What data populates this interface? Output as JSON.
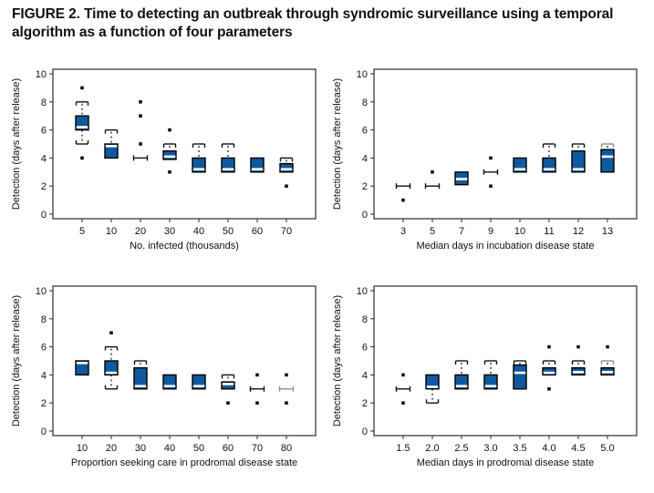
{
  "title": "FIGURE 2. Time to detecting an outbreak through syndromic surveillance using a temporal algorithm as a function of four parameters",
  "colors": {
    "box_fill": "#0f5a9e",
    "box_stroke": "#000000",
    "median": "#ffffff",
    "outlier": "#111111",
    "gray": "#8f8f8f",
    "frame": "#2b2b2b"
  },
  "chart_data": [
    {
      "type": "boxplot",
      "position": "top-left",
      "xlabel": "No. infected (thousands)",
      "ylabel": "Detection (days after release)",
      "ylim": [
        0,
        10
      ],
      "yticks": [
        0,
        2,
        4,
        6,
        8,
        10
      ],
      "grid": false,
      "categories": [
        "5",
        "10",
        "20",
        "30",
        "40",
        "50",
        "60",
        "70"
      ],
      "items": [
        {
          "x": "5",
          "q1": 6,
          "q3": 7,
          "median": 6.2,
          "whisker_high": 8,
          "whisker_low": 5,
          "outliers": [
            9,
            4
          ]
        },
        {
          "x": "10",
          "q1": 4,
          "q3": 5,
          "median": 4.85,
          "whisker_high": 6,
          "outliers": []
        },
        {
          "x": "20",
          "flat": 4,
          "outliers": [
            8,
            7,
            5
          ]
        },
        {
          "x": "30",
          "q1": 3.9,
          "q3": 4.5,
          "median": 4.1,
          "whisker_high": 5,
          "outliers": [
            6,
            3
          ]
        },
        {
          "x": "40",
          "q1": 3,
          "q3": 4,
          "median": 3.2,
          "whisker_high": 5,
          "outliers": []
        },
        {
          "x": "50",
          "q1": 3,
          "q3": 4,
          "median": 3.2,
          "whisker_high": 5,
          "outliers": []
        },
        {
          "x": "60",
          "q1": 3,
          "q3": 4,
          "median": 3.2,
          "outliers": []
        },
        {
          "x": "70",
          "q1": 3,
          "q3": 3.6,
          "median": 3.2,
          "whisker_high": 4,
          "outliers": [
            2
          ]
        }
      ]
    },
    {
      "type": "boxplot",
      "position": "top-right",
      "xlabel": "Median days in incubation disease state",
      "ylabel": "Detection (days after release)",
      "ylim": [
        0,
        10
      ],
      "yticks": [
        0,
        2,
        4,
        6,
        8,
        10
      ],
      "grid": false,
      "categories": [
        "3",
        "5",
        "7",
        "9",
        "10",
        "11",
        "12",
        "13"
      ],
      "items": [
        {
          "x": "3",
          "flat": 2,
          "outliers": [
            1
          ]
        },
        {
          "x": "5",
          "flat": 2,
          "outliers": [
            3
          ]
        },
        {
          "x": "7",
          "q1": 2.1,
          "q3": 3,
          "median": 2.5,
          "outliers": []
        },
        {
          "x": "9",
          "flat": 3,
          "outliers": [
            4,
            2
          ]
        },
        {
          "x": "10",
          "q1": 3,
          "q3": 4,
          "median": 3.2,
          "outliers": []
        },
        {
          "x": "11",
          "q1": 3,
          "q3": 4,
          "median": 3.2,
          "whisker_high": 5,
          "outliers": []
        },
        {
          "x": "12",
          "q1": 3,
          "q3": 4.5,
          "median": 3.2,
          "whisker_high": 5,
          "outliers": []
        },
        {
          "x": "13",
          "q1": 3,
          "q3": 4.6,
          "median": 4.1,
          "whisker_high": 5,
          "whisker_high_gray": true,
          "outliers": []
        }
      ]
    },
    {
      "type": "boxplot",
      "position": "bottom-left",
      "xlabel": "Proportion seeking care in prodromal disease state",
      "ylabel": "Detection (days after release)",
      "ylim": [
        0,
        10
      ],
      "yticks": [
        0,
        2,
        4,
        6,
        8,
        10
      ],
      "grid": false,
      "categories": [
        "10",
        "20",
        "30",
        "40",
        "50",
        "60",
        "70",
        "80"
      ],
      "items": [
        {
          "x": "10",
          "q1": 4,
          "q3": 5,
          "median": 4.85,
          "outliers": []
        },
        {
          "x": "20",
          "q1": 4,
          "q3": 5,
          "median": 4.15,
          "whisker_high": 6,
          "whisker_low": 3,
          "outliers": [
            7
          ]
        },
        {
          "x": "30",
          "q1": 3,
          "q3": 4.5,
          "median": 3.2,
          "whisker_high": 5,
          "outliers": []
        },
        {
          "x": "40",
          "q1": 3,
          "q3": 4,
          "median": 3.2,
          "outliers": []
        },
        {
          "x": "50",
          "q1": 3,
          "q3": 4,
          "median": 3.2,
          "outliers": []
        },
        {
          "x": "60",
          "q1": 3,
          "q3": 3.5,
          "median": 3.35,
          "whisker_high": 4,
          "outliers": [
            2
          ]
        },
        {
          "x": "70",
          "flat": 3,
          "outliers": [
            4,
            2
          ]
        },
        {
          "x": "80",
          "flat": 3,
          "flat_gray": true,
          "outliers": [
            4,
            2
          ]
        }
      ]
    },
    {
      "type": "boxplot",
      "position": "bottom-right",
      "xlabel": "Median days in prodromal disease state",
      "ylabel": "Detection (days after release)",
      "ylim": [
        0,
        10
      ],
      "yticks": [
        0,
        2,
        4,
        6,
        8,
        10
      ],
      "grid": false,
      "categories": [
        "1.5",
        "2.0",
        "2.5",
        "3.0",
        "3.5",
        "4.0",
        "4.5",
        "5.0"
      ],
      "items": [
        {
          "x": "1.5",
          "flat": 3,
          "outliers": [
            4,
            2
          ]
        },
        {
          "x": "2.0",
          "q1": 3,
          "q3": 4,
          "median": 3.15,
          "whisker_low": 2,
          "outliers": []
        },
        {
          "x": "2.5",
          "q1": 3,
          "q3": 4,
          "median": 3.2,
          "whisker_high": 5,
          "outliers": []
        },
        {
          "x": "3.0",
          "q1": 3,
          "q3": 4,
          "median": 3.2,
          "whisker_high": 5,
          "outliers": []
        },
        {
          "x": "3.5",
          "q1": 3,
          "q3": 4.7,
          "median": 4.15,
          "whisker_high": 5,
          "outliers": []
        },
        {
          "x": "4.0",
          "q1": 4,
          "q3": 4.5,
          "median": 4.15,
          "whisker_high": 5,
          "outliers": [
            6,
            3
          ]
        },
        {
          "x": "4.5",
          "q1": 4,
          "q3": 4.5,
          "median": 4.2,
          "whisker_high": 5,
          "outliers": [
            6
          ]
        },
        {
          "x": "5.0",
          "q1": 4,
          "q3": 4.5,
          "median": 4.2,
          "whisker_high": 5,
          "whisker_high_gray": true,
          "outliers": [
            6
          ]
        }
      ]
    }
  ]
}
